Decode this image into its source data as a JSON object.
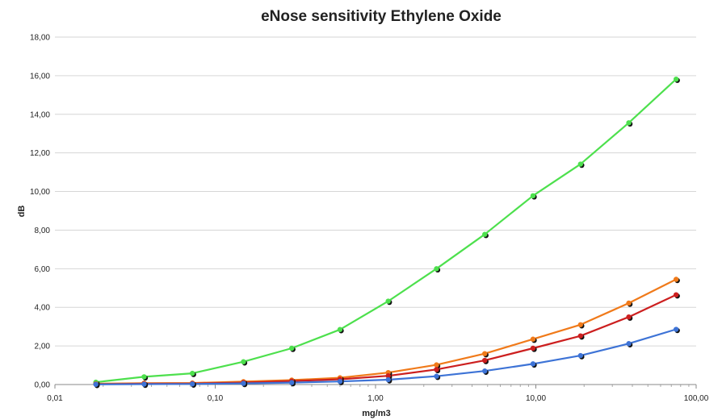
{
  "chart_data": {
    "type": "line",
    "title": "eNose sensitivity Ethylene Oxide",
    "xlabel": "mg/m3",
    "ylabel": "dB",
    "xscale": "log",
    "xlim": [
      0.01,
      100
    ],
    "ylim": [
      0,
      18
    ],
    "grid": "horizontal",
    "x_tick_labels": [
      "0,01",
      "0,10",
      "1,00",
      "10,00",
      "100,00"
    ],
    "y_tick_labels": [
      "0,00",
      "2,00",
      "4,00",
      "6,00",
      "8,00",
      "10,00",
      "12,00",
      "14,00",
      "16,00",
      "18,00"
    ],
    "x": [
      0.018,
      0.036,
      0.072,
      0.15,
      0.3,
      0.6,
      1.2,
      2.4,
      4.8,
      9.6,
      19,
      38,
      75
    ],
    "series": [
      {
        "color": "#4de04d",
        "values": [
          0.12,
          0.4,
          0.58,
          1.18,
          1.88,
          2.85,
          4.32,
          6.0,
          7.78,
          9.78,
          11.42,
          13.56,
          15.82
        ]
      },
      {
        "color": "#f07a1a",
        "values": [
          0.04,
          0.07,
          0.08,
          0.15,
          0.23,
          0.35,
          0.62,
          1.02,
          1.6,
          2.35,
          3.1,
          4.22,
          5.45
        ]
      },
      {
        "color": "#cc1f1f",
        "values": [
          0.02,
          0.04,
          0.05,
          0.1,
          0.18,
          0.27,
          0.45,
          0.78,
          1.25,
          1.88,
          2.52,
          3.5,
          4.65
        ]
      },
      {
        "color": "#3d73d6",
        "values": [
          0.01,
          0.02,
          0.03,
          0.06,
          0.1,
          0.16,
          0.25,
          0.43,
          0.7,
          1.07,
          1.5,
          2.12,
          2.86
        ]
      }
    ]
  }
}
